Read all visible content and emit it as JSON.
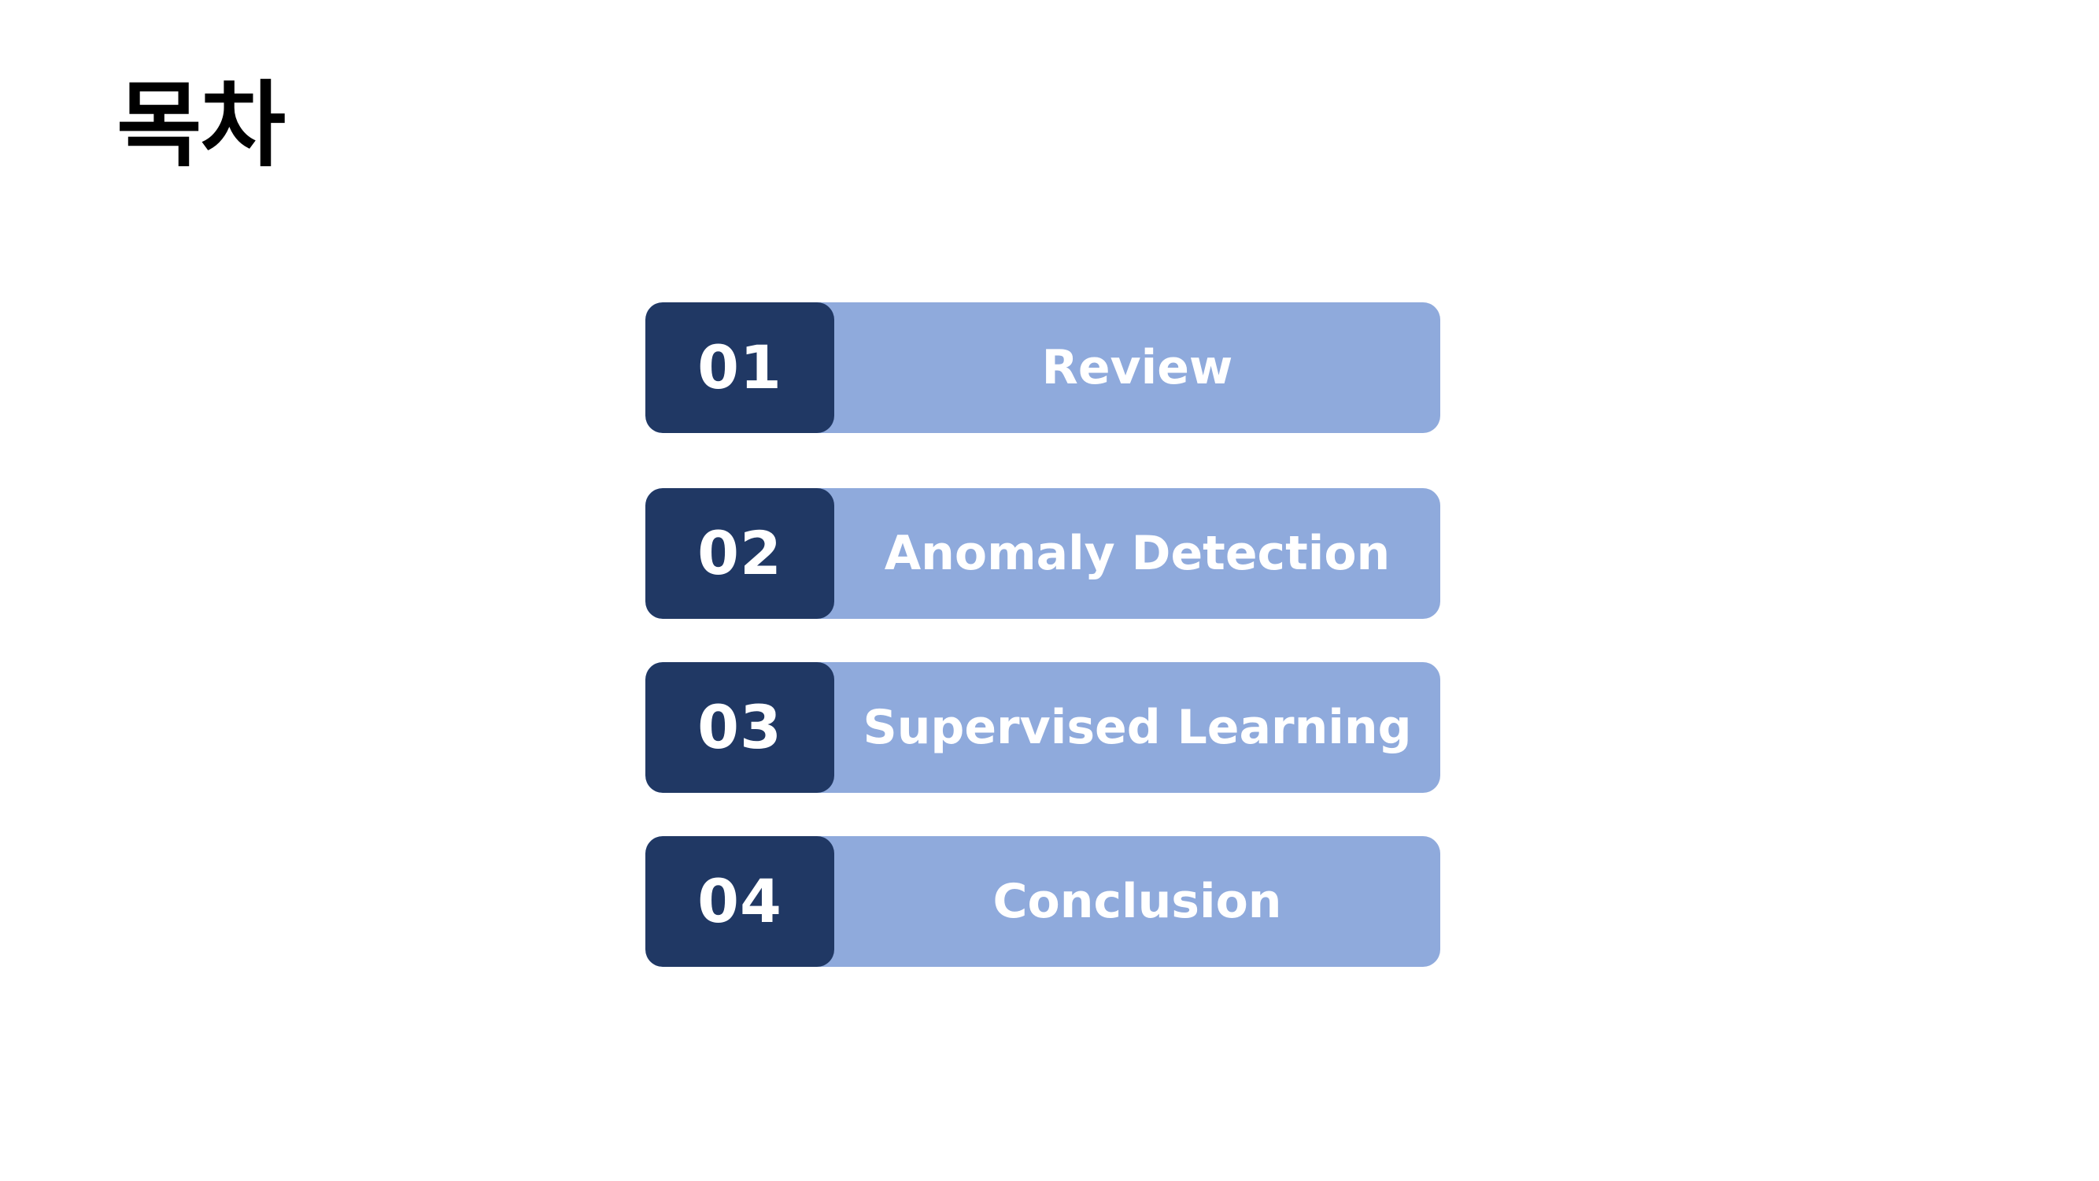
{
  "slide": {
    "title": "목차"
  },
  "toc": {
    "items": [
      {
        "number": "01",
        "label": "Review"
      },
      {
        "number": "02",
        "label": "Anomaly Detection"
      },
      {
        "number": "03",
        "label": "Supervised Learning"
      },
      {
        "number": "04",
        "label": "Conclusion"
      }
    ]
  },
  "colors": {
    "number_box": "#203864",
    "label_box": "#8faadc",
    "text_on_box": "#ffffff",
    "title_text": "#000000",
    "background": "#ffffff"
  }
}
